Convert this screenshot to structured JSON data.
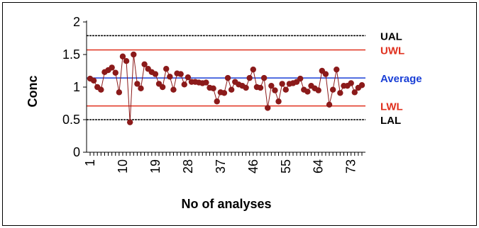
{
  "chart_data": {
    "type": "line",
    "title": "",
    "xlabel": "No of analyses",
    "ylabel": "Conc",
    "ylim": [
      0,
      2
    ],
    "yticks": [
      "0",
      "0.5",
      "1",
      "1.5",
      "2"
    ],
    "xlim": [
      1,
      76
    ],
    "xtick_labels": [
      "1",
      "10",
      "19",
      "28",
      "37",
      "46",
      "55",
      "64",
      "73"
    ],
    "xtick_values": [
      1,
      10,
      19,
      28,
      37,
      46,
      55,
      64,
      73
    ],
    "legend": "none",
    "grid": false,
    "series": [
      {
        "name": "",
        "color": "#8b1a1a",
        "x": [
          1,
          2,
          3,
          4,
          5,
          6,
          7,
          8,
          9,
          10,
          11,
          12,
          13,
          14,
          15,
          16,
          17,
          18,
          19,
          20,
          21,
          22,
          23,
          24,
          25,
          26,
          27,
          28,
          29,
          30,
          31,
          32,
          33,
          34,
          35,
          36,
          37,
          38,
          39,
          40,
          41,
          42,
          43,
          44,
          45,
          46,
          47,
          48,
          49,
          50,
          51,
          52,
          53,
          54,
          55,
          56,
          57,
          58,
          59,
          60,
          61,
          62,
          63,
          64,
          65,
          66,
          67,
          68,
          69,
          70,
          71,
          72,
          73,
          74,
          75,
          76
        ],
        "values": [
          1.13,
          1.1,
          1.0,
          0.96,
          1.23,
          1.26,
          1.3,
          1.22,
          0.92,
          1.47,
          1.4,
          0.46,
          1.5,
          1.05,
          0.98,
          1.35,
          1.28,
          1.23,
          1.2,
          1.05,
          1.0,
          1.28,
          1.16,
          0.96,
          1.21,
          1.2,
          1.04,
          1.15,
          1.08,
          1.08,
          1.07,
          1.06,
          1.07,
          0.99,
          0.98,
          0.78,
          0.92,
          0.91,
          1.14,
          0.96,
          1.08,
          1.04,
          1.02,
          0.99,
          1.14,
          1.27,
          1.0,
          0.99,
          1.14,
          0.68,
          1.02,
          0.95,
          0.78,
          1.05,
          0.96,
          1.05,
          1.06,
          1.08,
          1.13,
          0.96,
          0.93,
          1.02,
          0.98,
          0.95,
          1.25,
          1.2,
          0.73,
          0.96,
          1.27,
          0.91,
          1.02,
          1.02,
          1.06,
          0.92,
          0.99,
          1.03
        ]
      }
    ],
    "reference_lines": [
      {
        "label": "UAL",
        "value": 1.79,
        "color": "#000000",
        "label_color": "#000000"
      },
      {
        "label": "UWL",
        "value": 1.57,
        "color": "#e0301e",
        "label_color": "#e0301e"
      },
      {
        "label": "Average",
        "value": 1.14,
        "color": "#1a3fd6",
        "label_color": "#1a3fd6"
      },
      {
        "label": "LWL",
        "value": 0.71,
        "color": "#e0301e",
        "label_color": "#e0301e"
      },
      {
        "label": "LAL",
        "value": 0.5,
        "color": "#000000",
        "label_color": "#000000"
      }
    ]
  }
}
